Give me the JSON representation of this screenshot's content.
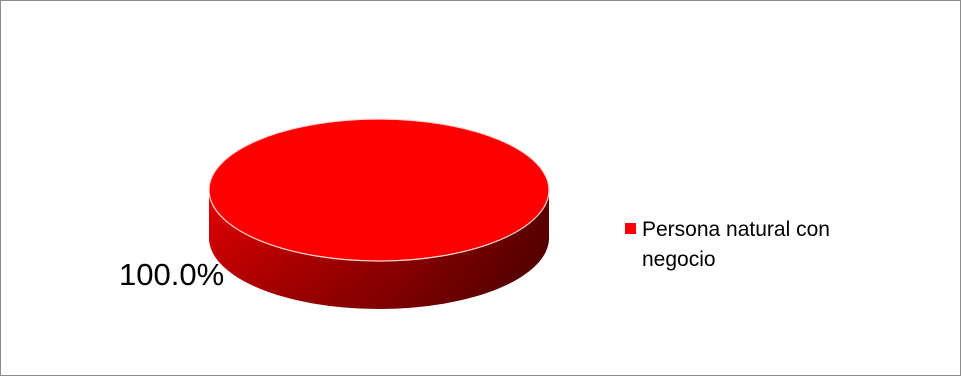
{
  "chart_data": {
    "type": "pie",
    "title": "",
    "categories": [
      "Persona natural con negocio"
    ],
    "values": [
      100.0
    ],
    "data_labels": [
      "100.0%"
    ],
    "colors": [
      "#ff0000"
    ],
    "legend_position": "right",
    "style": "3d"
  }
}
